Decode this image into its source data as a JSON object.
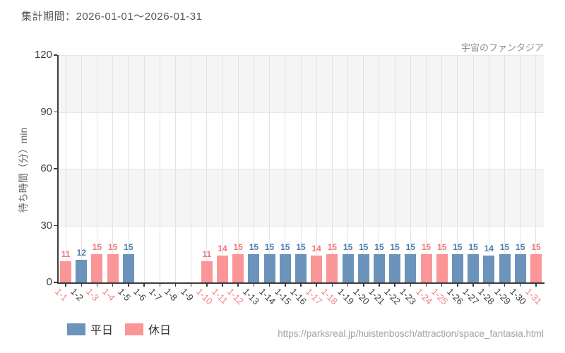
{
  "header": {
    "period_label": "集計期間：2026-01-01〜2026-01-31",
    "attraction_name": "宇宙のファンタジア"
  },
  "legend": {
    "weekday_label": "平日",
    "holiday_label": "休日"
  },
  "footer": {
    "url": "https://parksreal.jp/huistenbosch/attraction/space_fantasia.html"
  },
  "colors": {
    "weekday_bar": "#6b93bb",
    "holiday_bar": "#fa9598",
    "weekday_value_label": "#4a7cb0",
    "holiday_value_label": "#f2777c",
    "weekday_tick_label": "#3d3d3d",
    "holiday_tick_label": "#f48286",
    "axis": "#3c3c3c",
    "band_gray": "#f5f5f6",
    "band_white": "#ffffff",
    "grid_line": "#e3e3e3"
  },
  "chart_data": {
    "type": "bar",
    "title": "宇宙のファンタジア",
    "xlabel": "",
    "ylabel": "待ち時間（分）min",
    "ylim": [
      0,
      120
    ],
    "yticks": [
      0,
      30,
      60,
      90,
      120
    ],
    "grid": true,
    "legend_position": "bottom-left",
    "categories": [
      "1-1",
      "1-2",
      "1-3",
      "1-4",
      "1-5",
      "1-6",
      "1-7",
      "1-8",
      "1-9",
      "1-10",
      "1-11",
      "1-12",
      "1-13",
      "1-14",
      "1-15",
      "1-16",
      "1-17",
      "1-18",
      "1-19",
      "1-20",
      "1-21",
      "1-22",
      "1-23",
      "1-24",
      "1-25",
      "1-26",
      "1-27",
      "1-28",
      "1-29",
      "1-30",
      "1-31"
    ],
    "series": [
      {
        "name": "平日",
        "values": [
          null,
          12,
          null,
          null,
          15,
          null,
          null,
          null,
          null,
          null,
          null,
          null,
          15,
          15,
          15,
          15,
          null,
          null,
          15,
          15,
          15,
          15,
          15,
          null,
          null,
          15,
          15,
          14,
          15,
          15,
          null
        ]
      },
      {
        "name": "休日",
        "values": [
          11,
          null,
          15,
          15,
          null,
          null,
          null,
          null,
          null,
          11,
          14,
          15,
          null,
          null,
          null,
          null,
          14,
          15,
          null,
          null,
          null,
          null,
          null,
          15,
          15,
          null,
          null,
          null,
          null,
          null,
          15
        ]
      }
    ]
  }
}
